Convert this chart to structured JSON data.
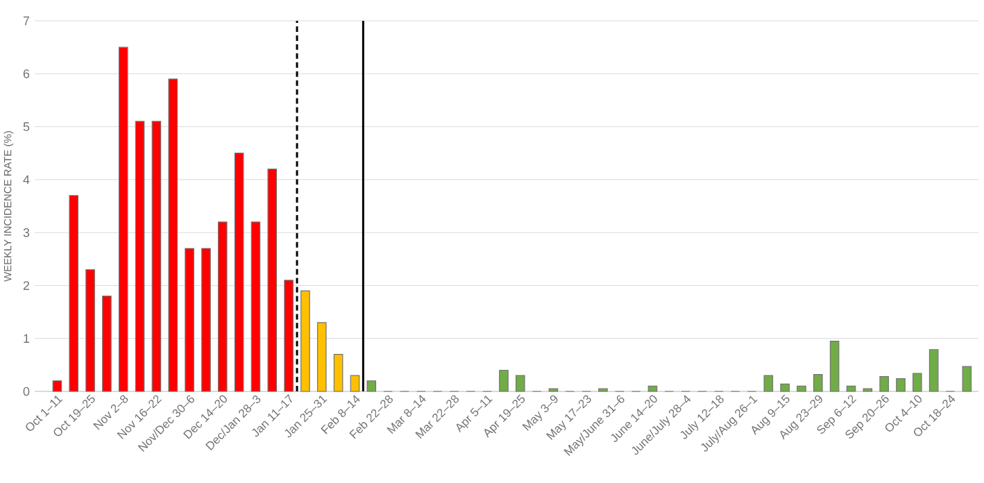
{
  "chart_data": {
    "type": "bar",
    "ylabel": "WEEKLY INCIDENCE RATE (%)",
    "categories": [
      "Oct 1–11",
      null,
      "Oct 19–25",
      null,
      "Nov 2–8",
      null,
      "Nov 16–22",
      null,
      "Nov/Dec 30–6",
      null,
      "Dec 14–20",
      null,
      "Dec/Jan 28–3",
      null,
      "Jan 11–17",
      null,
      "Jan 25–31",
      null,
      "Feb 8–14",
      null,
      "Feb 22–28",
      null,
      "Mar 8–14",
      null,
      "Mar 22–28",
      null,
      "Apr 5–11",
      null,
      "Apr 19–25",
      null,
      "May 3–9",
      null,
      "May 17–23",
      null,
      "May/June 31–6",
      null,
      "June 14–20",
      null,
      "June/July 28–4",
      null,
      "July 12–18",
      null,
      "July/Aug 26–1",
      null,
      "Aug 9–15",
      null,
      "Aug 23–29",
      null,
      "Sep 6–12",
      null,
      "Sep 20–26",
      null,
      "Oct 4–10",
      null,
      "Oct 18–24",
      null
    ],
    "values": [
      0.2,
      3.7,
      2.3,
      1.8,
      6.5,
      5.1,
      5.1,
      5.9,
      2.7,
      2.7,
      3.2,
      4.5,
      3.2,
      4.2,
      2.1,
      1.9,
      1.3,
      0.7,
      0.3,
      0.2,
      0,
      0,
      0,
      0,
      0,
      0,
      0,
      0.4,
      0.3,
      0,
      0.05,
      0,
      0,
      0.05,
      0,
      0,
      0.1,
      0,
      0,
      0,
      0,
      0,
      0,
      0.3,
      0.14,
      0.1,
      0.32,
      0.95,
      0.1,
      0.05,
      0.28,
      0.24,
      0.34,
      0.79,
      0,
      0.47
    ],
    "colors": [
      "#ff0000",
      "#ff0000",
      "#ff0000",
      "#ff0000",
      "#ff0000",
      "#ff0000",
      "#ff0000",
      "#ff0000",
      "#ff0000",
      "#ff0000",
      "#ff0000",
      "#ff0000",
      "#ff0000",
      "#ff0000",
      "#ff0000",
      "#ffc000",
      "#ffc000",
      "#ffc000",
      "#ffc000",
      "#70ad47",
      "#70ad47",
      "#70ad47",
      "#70ad47",
      "#70ad47",
      "#70ad47",
      "#70ad47",
      "#70ad47",
      "#70ad47",
      "#70ad47",
      "#70ad47",
      "#70ad47",
      "#70ad47",
      "#70ad47",
      "#70ad47",
      "#70ad47",
      "#70ad47",
      "#70ad47",
      "#70ad47",
      "#70ad47",
      "#70ad47",
      "#70ad47",
      "#70ad47",
      "#70ad47",
      "#70ad47",
      "#70ad47",
      "#70ad47",
      "#70ad47",
      "#70ad47",
      "#70ad47",
      "#70ad47",
      "#70ad47",
      "#70ad47",
      "#70ad47",
      "#70ad47",
      "#70ad47",
      "#70ad47"
    ],
    "ylim": [
      0,
      7
    ],
    "yticks": [
      0,
      1,
      2,
      3,
      4,
      5,
      6,
      7
    ],
    "grid": "y"
  }
}
